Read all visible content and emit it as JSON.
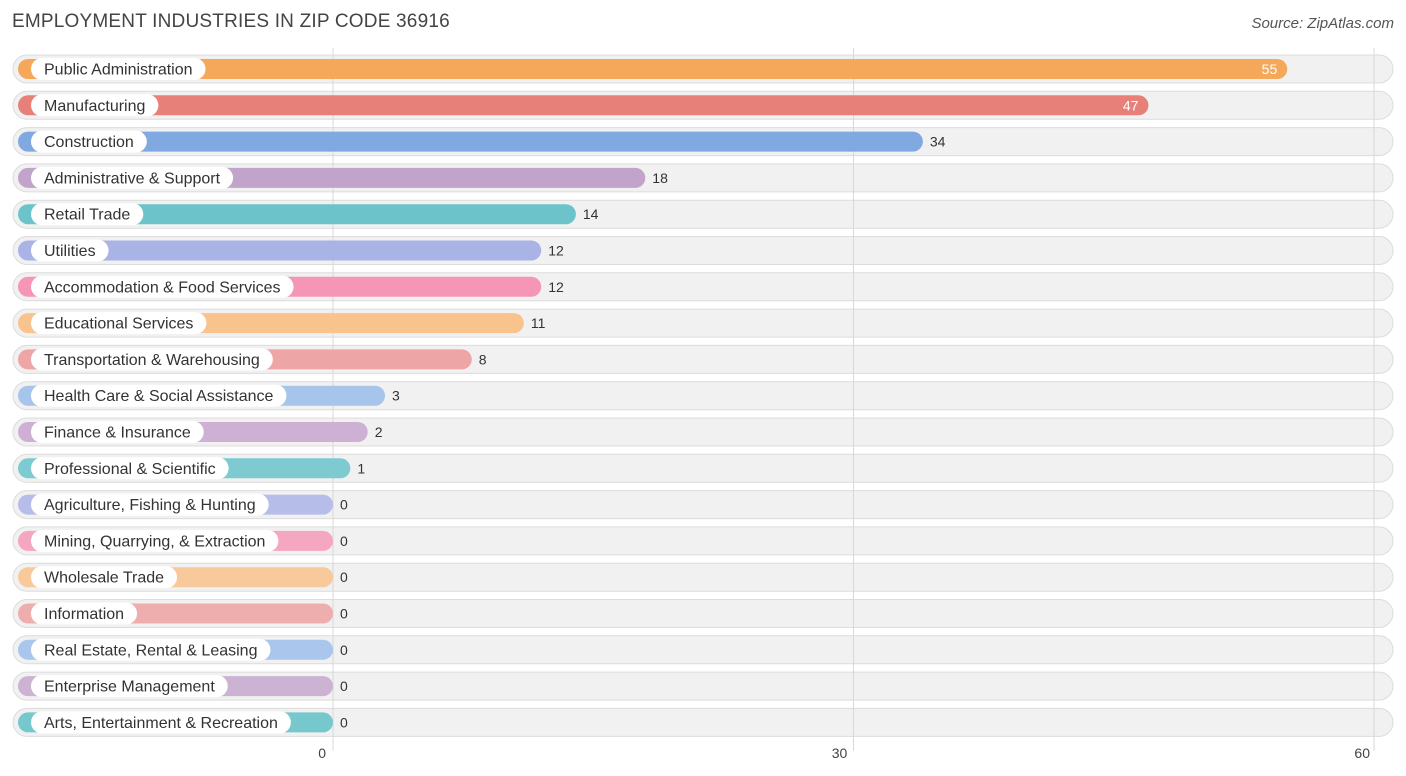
{
  "header": {
    "title": "EMPLOYMENT INDUSTRIES IN ZIP CODE 36916",
    "source": "Source: ZipAtlas.com"
  },
  "chart_data": {
    "type": "bar",
    "orientation": "horizontal",
    "title": "EMPLOYMENT INDUSTRIES IN ZIP CODE 36916",
    "categories": [
      "Public Administration",
      "Manufacturing",
      "Construction",
      "Administrative & Support",
      "Retail Trade",
      "Utilities",
      "Accommodation & Food Services",
      "Educational Services",
      "Transportation & Warehousing",
      "Health Care & Social Assistance",
      "Finance & Insurance",
      "Professional & Scientific",
      "Agriculture, Fishing & Hunting",
      "Mining, Quarrying, & Extraction",
      "Wholesale Trade",
      "Information",
      "Real Estate, Rental & Leasing",
      "Enterprise Management",
      "Arts, Entertainment & Recreation"
    ],
    "values": [
      55,
      47,
      34,
      18,
      14,
      12,
      12,
      11,
      8,
      3,
      2,
      1,
      0,
      0,
      0,
      0,
      0,
      0,
      0
    ],
    "colors": [
      "#f5a85a",
      "#e8807a",
      "#7fa9e0",
      "#c2a3c9",
      "#6cc3c9",
      "#a9b3e6",
      "#f596b6",
      "#f8c38d",
      "#eea5a5",
      "#a7c4ea",
      "#cdb0d4",
      "#7dcbd0",
      "#b7bde9",
      "#f5a6c0",
      "#f8c99a",
      "#eeaeae",
      "#aac6ec",
      "#ccb2d3",
      "#76c8cd"
    ],
    "xlim": [
      0,
      60
    ],
    "xticks": [
      "0",
      "30",
      "60"
    ],
    "grid": true,
    "legend": "none"
  }
}
